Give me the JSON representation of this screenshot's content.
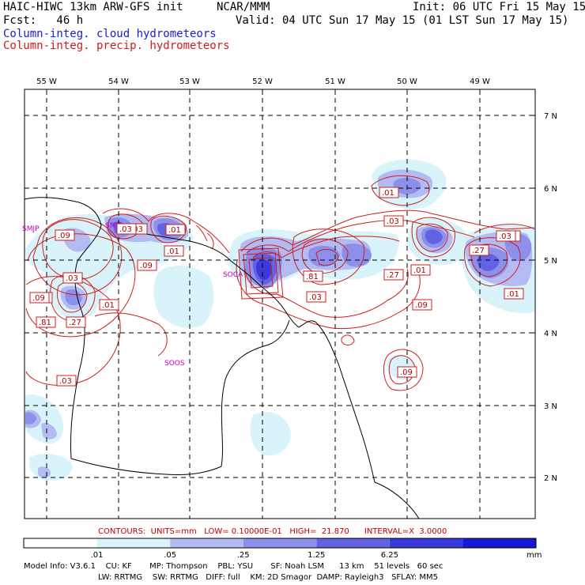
{
  "header": {
    "title_left": "HAIC-HIWC 13km ARW-GFS init",
    "title_mid": "NCAR/MMM",
    "init": "Init: 06 UTC Fri 15 May 15",
    "fcst": "Fcst:   46 h",
    "valid": "Valid: 04 UTC Sun 17 May 15 (01 LST Sun 17 May 15)",
    "field_cloud": "Column-integ. cloud hydrometeors",
    "field_precip": "Column-integ. precip. hydrometeors"
  },
  "map": {
    "lon_labels": [
      "55 W",
      "54 W",
      "53 W",
      "52 W",
      "51 W",
      "50 W",
      "49 W"
    ],
    "lat_labels": [
      "7 N",
      "6 N",
      "5 N",
      "4 N",
      "3 N",
      "2 N"
    ],
    "stations": [
      {
        "id": "smjp",
        "label": "SMJP"
      },
      {
        "id": "smja",
        "label": "SMJA"
      },
      {
        "id": "soca",
        "label": "SOCA"
      },
      {
        "id": "soos",
        "label": "SOOS"
      }
    ],
    "contour_labels": [
      ".09",
      ".03",
      ".01",
      ".09",
      ".03",
      ".09",
      ".81",
      ".27",
      ".01",
      ".03",
      ".01",
      ".03",
      ".81",
      ".03",
      ".27",
      ".01",
      ".09",
      ".27",
      ".03",
      ".01",
      ".09",
      ".01",
      ".03",
      ".09",
      ".03"
    ]
  },
  "contour_info": "CONTOURS:  UNITS=mm   LOW= 0.10000E-01   HIGH=  21.870      INTERVAL=X  3.0000",
  "colorbar": {
    "colors": [
      "#ffffff",
      "#d8f4fa",
      "#b4baf2",
      "#8c90ea",
      "#6262e2",
      "#3a3adc",
      "#1818d8"
    ],
    "ticks": [
      ".01",
      ".05",
      ".25",
      "1.25",
      "6.25"
    ],
    "unit": "mm"
  },
  "model_info": {
    "line1": "Model Info: V3.6.1    CU: KF       MP: Thompson    PBL: YSU       SF: Noah LSM      13 km    51 levels   60 sec",
    "line2": "LW: RRTMG    SW: RRTMG   DIFF: full    KM: 2D Smagor  DAMP: Rayleigh3   SFLAY: MM5"
  }
}
